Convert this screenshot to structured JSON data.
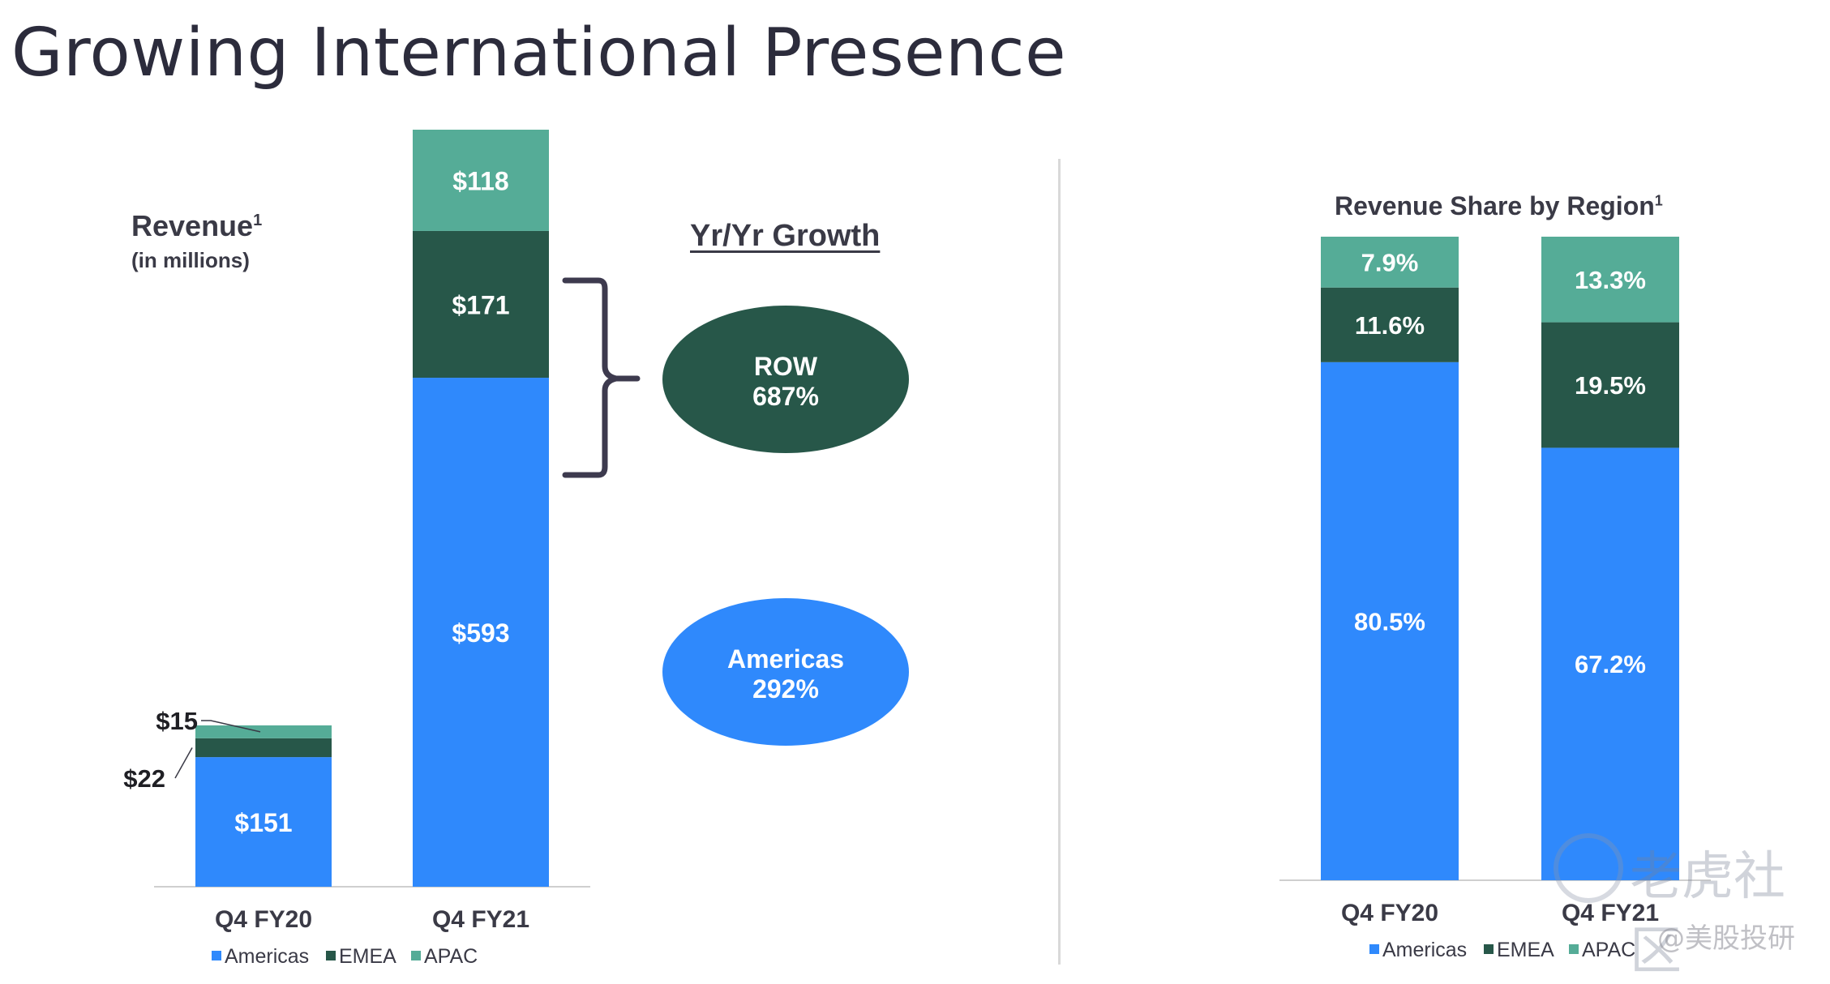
{
  "title": "Growing International Presence",
  "colors": {
    "americas": "#2f89fc",
    "emea": "#275749",
    "apac": "#55ac97",
    "axis": "#cfcfcf",
    "text": "#3a3a46"
  },
  "left_chart": {
    "title": "Revenue",
    "title_sup": "1",
    "subtitle": "(in millions)",
    "growth_title": "Yr/Yr Growth"
  },
  "growth": {
    "row": {
      "label": "ROW",
      "value": "687%"
    },
    "americas": {
      "label": "Americas",
      "value": "292%"
    }
  },
  "right_chart": {
    "title": "Revenue Share by Region",
    "title_sup": "1"
  },
  "legend": [
    "Americas",
    "EMEA",
    "APAC"
  ],
  "watermark": {
    "brand": "老虎社区",
    "handle": "@美股投研"
  },
  "chart_data": [
    {
      "type": "bar",
      "stacked": true,
      "title": "Revenue",
      "subtitle": "(in millions)",
      "categories": [
        "Q4 FY20",
        "Q4 FY21"
      ],
      "series": [
        {
          "name": "Americas",
          "values": [
            151,
            593
          ],
          "labels": [
            "$151",
            "$593"
          ]
        },
        {
          "name": "EMEA",
          "values": [
            22,
            171
          ],
          "labels": [
            "$22",
            "$171"
          ]
        },
        {
          "name": "APAC",
          "values": [
            15,
            118
          ],
          "labels": [
            "$15",
            "$118"
          ]
        }
      ],
      "ylim": [
        0,
        882
      ],
      "legend_position": "bottom"
    },
    {
      "type": "bar",
      "stacked": true,
      "title": "Revenue Share by Region",
      "categories": [
        "Q4 FY20",
        "Q4 FY21"
      ],
      "series": [
        {
          "name": "Americas",
          "values": [
            80.5,
            67.2
          ],
          "labels": [
            "80.5%",
            "67.2%"
          ]
        },
        {
          "name": "EMEA",
          "values": [
            11.6,
            19.5
          ],
          "labels": [
            "11.6%",
            "19.5%"
          ]
        },
        {
          "name": "APAC",
          "values": [
            7.9,
            13.3
          ],
          "labels": [
            "7.9%",
            "13.3%"
          ]
        }
      ],
      "ylim": [
        0,
        100
      ],
      "legend_position": "bottom"
    }
  ]
}
